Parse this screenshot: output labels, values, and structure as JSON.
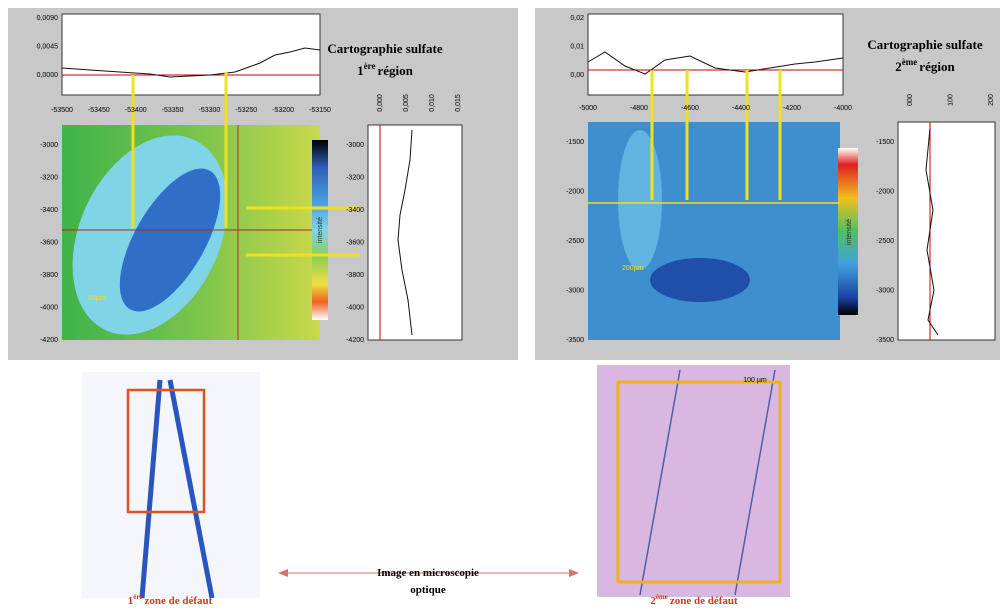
{
  "panels": [
    {
      "title": "Cartographie sulfate",
      "ordinal": "1",
      "ordinal_suffix": "ère",
      "region": "région",
      "top_yticks": [
        "0,0090",
        "0,0045",
        "0,0000"
      ],
      "top_xticks": [
        "-53500",
        "-53450",
        "-53400",
        "-53350",
        "-53300",
        "-53250",
        "-53200",
        "-53150"
      ],
      "map_yticks": [
        "-3000",
        "-3200",
        "-3400",
        "-3600",
        "-3800",
        "-4000",
        "-4200"
      ],
      "side_xticks": [
        "0,000",
        "0,005",
        "0,010",
        "0,015"
      ],
      "side_yticks": [
        "-3000",
        "-3200",
        "-3400",
        "-3600",
        "-3800",
        "-4000",
        "-4200"
      ],
      "scale_label": "50µm",
      "colorbar_label": "intensité"
    },
    {
      "title": "Cartographie sulfate",
      "ordinal": "2",
      "ordinal_suffix": "ème",
      "region": "région",
      "top_yticks": [
        "0,02",
        "0,01",
        "0,00"
      ],
      "top_xticks": [
        "-5000",
        "-4800",
        "-4600",
        "-4400",
        "-4200",
        "-4000"
      ],
      "map_yticks": [
        "-1500",
        "-2000",
        "-2500",
        "-3000",
        "-3500"
      ],
      "side_xticks": [
        "000",
        "100",
        "200"
      ],
      "side_yticks": [
        "-1500",
        "-2000",
        "-2500",
        "-3000",
        "-3500"
      ],
      "scale_label": "200µm",
      "colorbar_label": "intensité"
    }
  ],
  "micro": {
    "caption": "Image en microscopie optique",
    "scale_label": "100 µm",
    "zones": [
      {
        "ordinal": "1",
        "ordinal_suffix": "ère",
        "text": "zone de défaut"
      },
      {
        "ordinal": "2",
        "ordinal_suffix": "ème",
        "text": "zone de défaut"
      }
    ]
  }
}
